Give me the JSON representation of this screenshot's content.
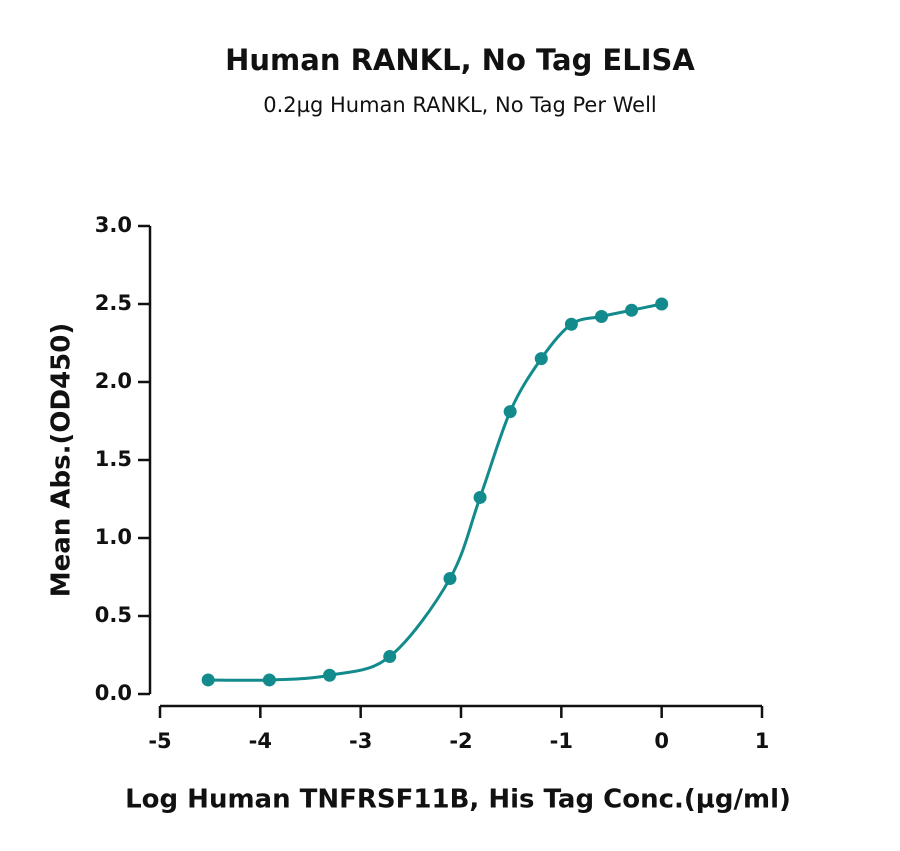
{
  "chart_data": {
    "type": "scatter",
    "title": "Human RANKL, No Tag ELISA",
    "subtitle": "0.2µg Human RANKL, No Tag Per Well",
    "x_label": "Log Human TNFRSF11B, His Tag Conc.(µg/ml)",
    "y_label": "Mean Abs.(OD450)",
    "x": [
      -4.52,
      -3.91,
      -3.31,
      -2.71,
      -2.11,
      -1.81,
      -1.51,
      -1.2,
      -0.9,
      -0.6,
      -0.3,
      0
    ],
    "values": [
      0.09,
      0.09,
      0.12,
      0.24,
      0.74,
      1.26,
      1.81,
      2.15,
      2.37,
      2.42,
      2.46,
      2.5
    ],
    "color": "#138a8c",
    "xlim": [
      -5,
      1
    ],
    "xticks": [
      -5,
      -4,
      -3,
      -2,
      -1,
      0,
      1
    ],
    "ylim": [
      0,
      3
    ],
    "yticks": [
      {
        "value": 0,
        "label": "0.0"
      },
      {
        "value": 0.5,
        "label": "0.5"
      },
      {
        "value": 1,
        "label": "1.0"
      },
      {
        "value": 1.5,
        "label": "1.5"
      },
      {
        "value": 2,
        "label": "2.0"
      },
      {
        "value": 2.5,
        "label": "2.5"
      },
      {
        "value": 3,
        "label": "3.0"
      }
    ]
  }
}
